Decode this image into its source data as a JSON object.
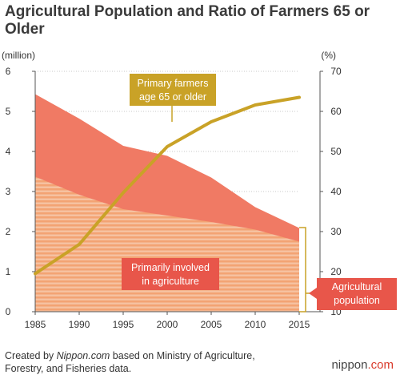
{
  "title": "Agricultural Population and Ratio of Farmers 65 or Older",
  "footer": {
    "prefix": "Created by ",
    "source": "Nippon.com",
    "rest": " based on Ministry of Agriculture, Forestry, and Fisheries data."
  },
  "brand": {
    "name": "nippon",
    "suffix": ".com"
  },
  "colors": {
    "population_area": "#f07a64",
    "involved_stripe_a": "#f3a373",
    "involved_stripe_b": "#f6c1a0",
    "ratio_line": "#c9a227",
    "callout_red": "#e8564a",
    "axis": "#555555",
    "grid": "#b9b9b9"
  },
  "chart_data": {
    "type": "area",
    "x": [
      1985,
      1990,
      1995,
      2000,
      2005,
      2010,
      2015
    ],
    "xlim": [
      1985,
      2015
    ],
    "y_left": {
      "unit_label": "(million)",
      "ylim": [
        0,
        6
      ],
      "ticks": [
        "0",
        "1",
        "2",
        "3",
        "4",
        "5",
        "6"
      ]
    },
    "y_right": {
      "unit_label": "(%)",
      "ylim": [
        10,
        70
      ],
      "ticks": [
        "10",
        "20",
        "30",
        "40",
        "50",
        "60",
        "70"
      ]
    },
    "x_ticks": [
      "1985",
      "1990",
      "1995",
      "2000",
      "2005",
      "2010",
      "2015"
    ],
    "series": [
      {
        "name": "Agricultural population",
        "kind": "area",
        "axis": "left",
        "values": [
          5.43,
          4.82,
          4.14,
          3.89,
          3.35,
          2.61,
          2.09
        ]
      },
      {
        "name": "Primarily involved in agriculture",
        "kind": "area-striped",
        "axis": "left",
        "values": [
          3.37,
          2.92,
          2.56,
          2.4,
          2.24,
          2.05,
          1.75
        ]
      },
      {
        "name": "Primary farmers age 65 or older",
        "kind": "line",
        "axis": "right",
        "values": [
          19.5,
          26.8,
          39.7,
          51.2,
          57.4,
          61.6,
          63.5
        ]
      }
    ],
    "annotations": {
      "ratio_label_line1": "Primary farmers",
      "ratio_label_line2": "age 65 or older",
      "involved_label_line1": "Primarily involved",
      "involved_label_line2": "in agriculture",
      "population_label_line1": "Agricultural",
      "population_label_line2": "population"
    },
    "grid": false,
    "legend": "none"
  }
}
